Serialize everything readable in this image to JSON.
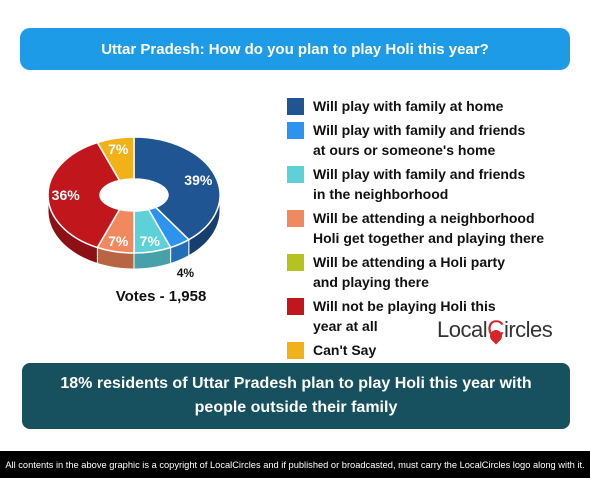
{
  "header": {
    "title": "Uttar Pradesh: How do you plan to play Holi this year?"
  },
  "chart_data": {
    "type": "pie",
    "title": "Uttar Pradesh: How do you plan to play Holi this year?",
    "categories": [
      "Will play with family at home",
      "Will play with family and friends at ours or someone's home",
      "Will play with family and friends in the neighborhood",
      "Will be attending a neighborhood Holi get together and playing there",
      "Will be attending a Holi party and playing there",
      "Will not be playing Holi this year at all",
      "Can't Say"
    ],
    "values": [
      39,
      4,
      7,
      7,
      0,
      36,
      7
    ],
    "data_labels": [
      "39%",
      "4%",
      "7%",
      "7%",
      "",
      "36%",
      "7%"
    ],
    "colors": [
      "#1f5592",
      "#2e93ee",
      "#5ed1d8",
      "#f08860",
      "#b6c21d",
      "#c2161d",
      "#f1b219"
    ],
    "side_colors": [
      "#173f6d",
      "#216fb6",
      "#46a2a8",
      "#b86544",
      "#8a9314",
      "#8c1015",
      "#b7860f"
    ],
    "legend_position": "right"
  },
  "legend": {
    "items": [
      {
        "line1": "Will play with family at home",
        "line2": ""
      },
      {
        "line1": "Will play with family and friends",
        "line2": "at ours or someone's home"
      },
      {
        "line1": "Will play with family and friends",
        "line2": "in the neighborhood"
      },
      {
        "line1": "Will be attending a neighborhood",
        "line2": "Holi get together and playing there"
      },
      {
        "line1": "Will be attending a Holi party",
        "line2": "and playing there"
      },
      {
        "line1": "Will not be playing Holi this",
        "line2": "year at all"
      },
      {
        "line1": "Can't Say",
        "line2": ""
      }
    ]
  },
  "votes": "Votes - 1,958",
  "logo": {
    "part1": "Local",
    "part2": "C",
    "part3": "ircles"
  },
  "summary": {
    "line1": "18% residents of Uttar Pradesh plan to play Holi this year with",
    "line2": "people outside their family"
  },
  "footer": "All contents in the above graphic is a copyright of LocalCircles and if published or broadcasted, must carry the LocalCircles logo along with it."
}
